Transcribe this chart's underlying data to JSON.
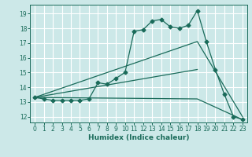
{
  "title": "",
  "xlabel": "Humidex (Indice chaleur)",
  "background_color": "#cce8e8",
  "line_color": "#1a6b5a",
  "grid_color": "#ffffff",
  "xlim": [
    -0.5,
    23.5
  ],
  "ylim": [
    11.6,
    19.6
  ],
  "yticks": [
    12,
    13,
    14,
    15,
    16,
    17,
    18,
    19
  ],
  "xticks": [
    0,
    1,
    2,
    3,
    4,
    5,
    6,
    7,
    8,
    9,
    10,
    11,
    12,
    13,
    14,
    15,
    16,
    17,
    18,
    19,
    20,
    21,
    22,
    23
  ],
  "series1_x": [
    0,
    1,
    2,
    3,
    4,
    5,
    6,
    7,
    8,
    9,
    10,
    11,
    12,
    13,
    14,
    15,
    16,
    17,
    18,
    19,
    20,
    21,
    22,
    23
  ],
  "series1_y": [
    13.3,
    13.2,
    13.1,
    13.1,
    13.1,
    13.1,
    13.2,
    14.3,
    14.2,
    14.6,
    15.0,
    17.8,
    17.9,
    18.5,
    18.6,
    18.1,
    18.0,
    18.2,
    19.2,
    17.1,
    15.2,
    13.5,
    12.0,
    11.8
  ],
  "series2_x": [
    0,
    18,
    23
  ],
  "series2_y": [
    13.3,
    17.1,
    12.0
  ],
  "series3_x": [
    0,
    18
  ],
  "series3_y": [
    13.3,
    15.2
  ],
  "series4_x": [
    0,
    18,
    23
  ],
  "series4_y": [
    13.3,
    13.2,
    11.8
  ],
  "xlabel_fontsize": 6.5,
  "tick_fontsize": 5.5
}
